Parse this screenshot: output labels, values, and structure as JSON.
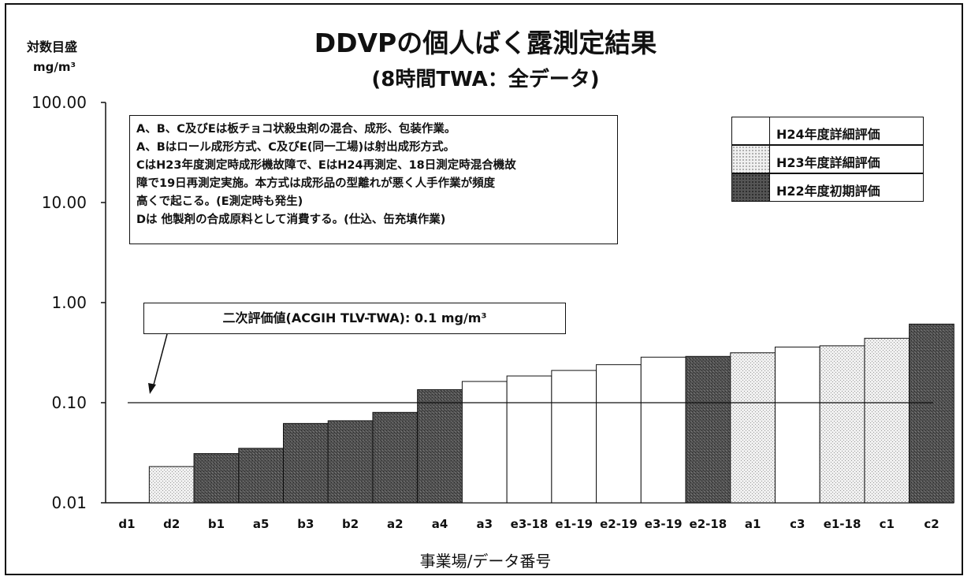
{
  "chart_data": {
    "type": "bar",
    "title": "DDVPの個人ばく露測定結果",
    "subtitle": "(8時間TWA：全データ)",
    "ylabel_line1": "対数目盛",
    "ylabel_line2": "mg/m³",
    "xlabel": "事業場/データ番号",
    "yscale": "log",
    "ylim": [
      0.01,
      100
    ],
    "yticks": [
      "100.00",
      "10.00",
      "1.00",
      "0.10",
      "0.01"
    ],
    "categories": [
      "d1",
      "d2",
      "b1",
      "a5",
      "b3",
      "b2",
      "a2",
      "a4",
      "a3",
      "e3-18",
      "e1-19",
      "e2-19",
      "e3-19",
      "e2-18",
      "a1",
      "c3",
      "e1-18",
      "c1",
      "c2"
    ],
    "values": [
      0.01,
      0.023,
      0.031,
      0.035,
      0.062,
      0.066,
      0.08,
      0.135,
      0.163,
      0.185,
      0.21,
      0.24,
      0.285,
      0.29,
      0.315,
      0.36,
      0.37,
      0.44,
      0.61
    ],
    "groups": [
      "H22",
      "H23",
      "H22",
      "H22",
      "H22",
      "H22",
      "H22",
      "H22",
      "H24",
      "H24",
      "H24",
      "H24",
      "H24",
      "H22",
      "H23",
      "H24",
      "H23",
      "H23",
      "H22"
    ],
    "reference_line": {
      "value": 0.1,
      "label": "二次評価値(ACGIH TLV-TWA): 0.1 mg/m³"
    },
    "legend": [
      {
        "key": "H24",
        "label": "H24年度詳細評価",
        "pattern": "white"
      },
      {
        "key": "H23",
        "label": "H23年度詳細評価",
        "pattern": "light"
      },
      {
        "key": "H22",
        "label": "H22年度初期評価",
        "pattern": "dark"
      }
    ],
    "note_lines": [
      "A、B、C及びEは板チョコ状殺虫剤の混合、成形、包装作業。",
      "A、Bはロール成形方式、C及びE(同一工場)は射出成形方式。",
      "CはH23年度測定時成形機故障で、EはH24再測定、18日測定時混合機故",
      "障で19日再測定実施。本方式は成形品の型離れが悪く人手作業が頻度",
      "高くで起こる。(E測定時も発生)",
      "Dは 他製剤の合成原料として消費する。(仕込、缶充填作業)"
    ]
  }
}
